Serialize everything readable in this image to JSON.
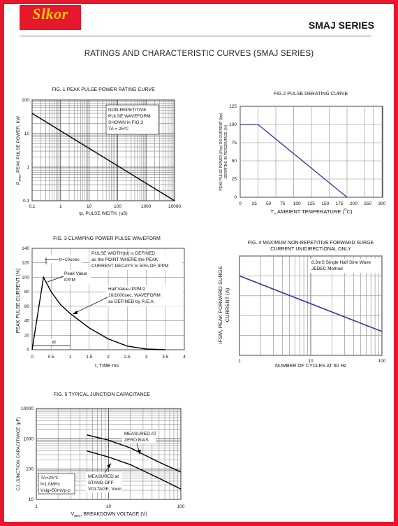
{
  "header": {
    "logo_text": "Slkor",
    "series_title": "SMAJ SERIES",
    "page_title": "RATINGS AND CHARACTERISTIC CURVES (SMAJ SERIES)"
  },
  "colors": {
    "frame": "#e5182c",
    "logo_text": "#f6c900",
    "curve": "#2a3a9a",
    "grid": "#8a8a8a"
  },
  "chart_data": [
    {
      "id": "fig1",
      "type": "line",
      "title": "FIG. 1 PEAK PULSE POWER RATING CURVE",
      "xlabel": "tp, PULSE WIDTH, (uS)",
      "ylabel_parts": [
        "P",
        "PPM",
        ", PEAK PULSE POWER, KW"
      ],
      "xscale": "log",
      "yscale": "log",
      "xlim": [
        0.1,
        10000
      ],
      "ylim": [
        0.1,
        100
      ],
      "xticks": [
        {
          "v": 0.1,
          "label": "0.1"
        },
        {
          "v": 1,
          "label": "1"
        },
        {
          "v": 10,
          "label": "10"
        },
        {
          "v": 100,
          "label": "100"
        },
        {
          "v": 1000,
          "label": "1000"
        },
        {
          "v": 10000,
          "label": "10000"
        }
      ],
      "yticks": [
        {
          "v": 0.1,
          "label": "0.1"
        },
        {
          "v": 1,
          "label": "1"
        },
        {
          "v": 10,
          "label": "10"
        },
        {
          "v": 100,
          "label": "100"
        }
      ],
      "series": [
        {
          "points": [
            [
              0.1,
              40
            ],
            [
              10000,
              0.1
            ]
          ]
        }
      ],
      "annotation": [
        "NON-REPETITIVE",
        "PULSE WAVEFORM",
        "SHOWN in FIG.3",
        "TA = 25℃"
      ]
    },
    {
      "id": "fig2",
      "type": "line",
      "title": "FIG.2 PULSE DERATING CURVE",
      "xlabel_parts": [
        "T",
        "A",
        " AMBIENT TEMPERATURE (",
        "O",
        "C)"
      ],
      "ylabel": [
        "PEAK PULSE POWER (Ppp) OR CURRENT (Ipp)",
        "DERATING IN PERCENTAGE (%)"
      ],
      "xlim": [
        0,
        300
      ],
      "ylim": [
        0,
        125
      ],
      "xticks": [
        0,
        25,
        50,
        75,
        100,
        125,
        150,
        175,
        200,
        250,
        300
      ],
      "yticks": [
        0,
        25,
        50,
        75,
        100,
        125
      ],
      "series": [
        {
          "points": [
            [
              0,
              100
            ],
            [
              25,
              100
            ],
            [
              150,
              0
            ]
          ]
        }
      ]
    },
    {
      "id": "fig3",
      "type": "line",
      "title": "FIG. 3 CLAMPING POWER PULSE WAVEFORM",
      "xlabel": "t, TIME ms",
      "ylabel": "PEAK PULSE CURRENT (%)",
      "xlim": [
        0,
        4
      ],
      "ylim": [
        0,
        140
      ],
      "xticks": [
        {
          "v": 0,
          "label": "0"
        },
        {
          "v": 0.5,
          "label": "0.5"
        },
        {
          "v": 1,
          "label": "1"
        },
        {
          "v": 1.5,
          "label": "1.5"
        },
        {
          "v": 2,
          "label": "2"
        },
        {
          "v": 2.5,
          "label": "2.5"
        },
        {
          "v": 3,
          "label": "3"
        },
        {
          "v": 3.5,
          "label": "3.5"
        },
        {
          "v": 4,
          "label": "4"
        }
      ],
      "yticks": [
        0,
        20,
        40,
        60,
        80,
        100,
        120,
        140
      ],
      "series": [
        {
          "points": [
            [
              0,
              0
            ],
            [
              0.3,
              100
            ],
            [
              0.5,
              80
            ],
            [
              0.75,
              62
            ],
            [
              1,
              50
            ],
            [
              1.5,
              30
            ],
            [
              2,
              15
            ],
            [
              2.5,
              5
            ],
            [
              3,
              1
            ],
            [
              3.5,
              0
            ]
          ]
        }
      ],
      "annotations": {
        "tr": "tr=10usec",
        "pulse_width": [
          "PULSE WIDTH(td) is DEFINED",
          "as the POINT WHERE the PEAK",
          "CURRENT DECAYS to 50% OF IPPM"
        ],
        "peak": [
          "Peak Value",
          "IPPM"
        ],
        "half": [
          "Half Value-IPPM/2",
          "10/1000sec. WAVEFORM",
          "as DEFINED by R.E.A."
        ],
        "td": "td"
      }
    },
    {
      "id": "fig4",
      "type": "line",
      "title": [
        "FIG. 4 MAXIMUM  NON-REPETITIVE FORWARD SURGE",
        "CURRENT UNIDIRECTIONAL ONLY"
      ],
      "xlabel": "NUMBER OF CYCLES AT 60 Hz",
      "ylabel": [
        "IFSM, PEAK FORWARD SURGE",
        "CURRENT (A)"
      ],
      "xscale": "log",
      "xlim": [
        1,
        100
      ],
      "ylim": [
        0,
        50
      ],
      "xticks": [
        {
          "v": 1,
          "label": "1"
        },
        {
          "v": 10,
          "label": "10"
        },
        {
          "v": 100,
          "label": "100"
        }
      ],
      "yticks": [
        0,
        10,
        20,
        30,
        40,
        50
      ],
      "series": [
        {
          "points": [
            [
              1,
              40
            ],
            [
              100,
              12
            ]
          ]
        }
      ],
      "annotation": [
        "8.3mS Single Half Sine Wave",
        "JEDEC Method"
      ]
    },
    {
      "id": "fig5",
      "type": "line",
      "title": "FIG. 5 TYPICAL JUNCTION CAPACITANCE",
      "xlabel_parts": [
        "V",
        "(BR)",
        ", BREAKDOWN VOLTAGE (V)"
      ],
      "ylabel": "CJ, JUNCTION CAPACITANCE (pF)",
      "xscale": "log",
      "yscale": "log",
      "xlim": [
        1,
        100
      ],
      "ylim": [
        10,
        10000
      ],
      "xticks": [
        {
          "v": 1,
          "label": "1"
        },
        {
          "v": 10,
          "label": "10"
        },
        {
          "v": 100,
          "label": "100"
        }
      ],
      "yticks": [
        {
          "v": 10,
          "label": "10"
        },
        {
          "v": 100,
          "label": "100"
        },
        {
          "v": 1000,
          "label": "1000"
        },
        {
          "v": 10000,
          "label": "10000"
        }
      ],
      "series": [
        {
          "name": "MEASURED AT ZERO BIAS",
          "points": [
            [
              5,
              1350
            ],
            [
              10,
              900
            ],
            [
              20,
              500
            ],
            [
              50,
              170
            ],
            [
              100,
              80
            ]
          ]
        },
        {
          "name": "MEASURED at STAND-OFF VOLTAGE, Vwm",
          "points": [
            [
              5,
              400
            ],
            [
              10,
              250
            ],
            [
              20,
              140
            ],
            [
              50,
              50
            ],
            [
              100,
              22
            ]
          ]
        }
      ],
      "annotations": {
        "zero_bias": [
          "MEASURED AT",
          "ZERO BIAS"
        ],
        "standoff": [
          "MEASURED at",
          "STAND-OFF",
          "VOLTAGE, Vwm"
        ],
        "conditions": [
          "TA=25℃",
          "f=1.0MHz",
          "Vsig=50mVp-p"
        ]
      }
    }
  ]
}
